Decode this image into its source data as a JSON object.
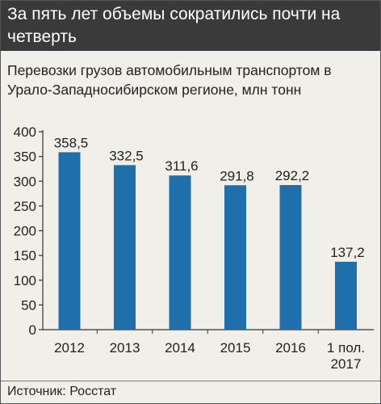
{
  "headline": "За пять лет объемы сократились почти на четверть",
  "subtitle": "Перевозки грузов автомобильным транспортом в Урало-Западносибирском регионе, млн тонн",
  "source": "Источник: Росстат",
  "colors": {
    "bar": "#1f6fad",
    "headline_bg": "#3a3a3a",
    "panel_bg": "#f1efe9"
  },
  "chart_data": {
    "type": "bar",
    "title": "Перевозки грузов автомобильным транспортом в Урало-Западносибирском регионе, млн тонн",
    "categories": [
      "2012",
      "2013",
      "2014",
      "2015",
      "2016",
      "1 пол.\n2017"
    ],
    "values": [
      358.5,
      332.5,
      311.6,
      291.8,
      292.2,
      137.2
    ],
    "value_labels": [
      "358,5",
      "332,5",
      "311,6",
      "291,8",
      "292,2",
      "137,2"
    ],
    "yticks": [
      "0",
      "50",
      "100",
      "150",
      "200",
      "250",
      "300",
      "350",
      "400"
    ],
    "ylim": [
      0,
      400
    ],
    "xlabel": "",
    "ylabel": "",
    "grid": false,
    "legend": "none"
  }
}
